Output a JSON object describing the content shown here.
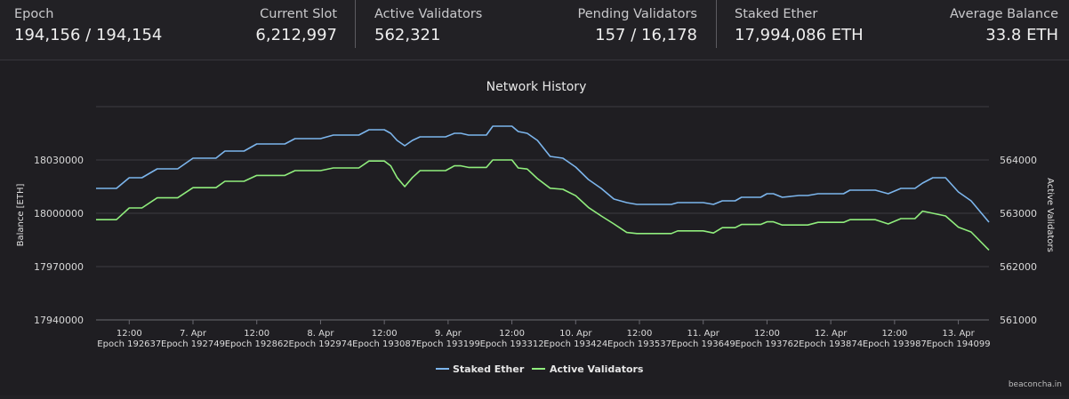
{
  "stats": [
    {
      "label": "Epoch",
      "value": "194,156 / 194,154"
    },
    {
      "label": "Current Slot",
      "value": "6,212,997"
    },
    {
      "label": "Active Validators",
      "value": "562,321"
    },
    {
      "label": "Pending Validators",
      "value": "157 / 16,178"
    },
    {
      "label": "Staked Ether",
      "value": "17,994,086 ETH"
    },
    {
      "label": "Average Balance",
      "value": "33.8 ETH"
    }
  ],
  "credit": "beaconcha.in",
  "chart_data": {
    "type": "line",
    "title": "Network History",
    "ylabel": "Balance [ETH]",
    "y2label": "Active Validators",
    "ylim": [
      17940000,
      18060000
    ],
    "y2lim": [
      561000,
      565000
    ],
    "yticks": [
      "17940000",
      "17970000",
      "18000000",
      "18030000"
    ],
    "y2ticks": [
      "561000",
      "562000",
      "563000",
      "564000"
    ],
    "x_ticks": [
      {
        "t": 0.5,
        "top": "12:00",
        "bottom": "Epoch 192637"
      },
      {
        "t": 1.0,
        "top": "7. Apr",
        "bottom": "Epoch 192749"
      },
      {
        "t": 1.5,
        "top": "12:00",
        "bottom": "Epoch 192862"
      },
      {
        "t": 2.0,
        "top": "8. Apr",
        "bottom": "Epoch 192974"
      },
      {
        "t": 2.5,
        "top": "12:00",
        "bottom": "Epoch 193087"
      },
      {
        "t": 3.0,
        "top": "9. Apr",
        "bottom": "Epoch 193199"
      },
      {
        "t": 3.5,
        "top": "12:00",
        "bottom": "Epoch 193312"
      },
      {
        "t": 4.0,
        "top": "10. Apr",
        "bottom": "Epoch 193424"
      },
      {
        "t": 4.5,
        "top": "12:00",
        "bottom": "Epoch 193537"
      },
      {
        "t": 5.0,
        "top": "11. Apr",
        "bottom": "Epoch 193649"
      },
      {
        "t": 5.5,
        "top": "12:00",
        "bottom": "Epoch 193762"
      },
      {
        "t": 6.0,
        "top": "12. Apr",
        "bottom": "Epoch 193874"
      },
      {
        "t": 6.5,
        "top": "12:00",
        "bottom": "Epoch 193987"
      },
      {
        "t": 7.0,
        "top": "13. Apr",
        "bottom": "Epoch 194099"
      }
    ],
    "xlim": [
      0.24,
      7.24
    ],
    "grid": true,
    "legend_position": "bottom-center",
    "series": [
      {
        "name": "Staked Ether",
        "axis": "left",
        "color": "#7cb5ec",
        "x": [
          0.24,
          0.4,
          0.5,
          0.6,
          0.72,
          0.8,
          0.88,
          1.0,
          1.1,
          1.18,
          1.25,
          1.32,
          1.4,
          1.5,
          1.6,
          1.72,
          1.8,
          1.88,
          2.0,
          2.1,
          2.2,
          2.3,
          2.38,
          2.45,
          2.5,
          2.55,
          2.6,
          2.66,
          2.72,
          2.78,
          2.9,
          2.98,
          3.05,
          3.1,
          3.16,
          3.22,
          3.3,
          3.35,
          3.4,
          3.5,
          3.55,
          3.62,
          3.7,
          3.8,
          3.9,
          4.0,
          4.1,
          4.2,
          4.3,
          4.4,
          4.48,
          4.55,
          4.65,
          4.75,
          4.8,
          4.9,
          5.0,
          5.08,
          5.15,
          5.25,
          5.3,
          5.35,
          5.45,
          5.5,
          5.55,
          5.62,
          5.75,
          5.82,
          5.9,
          6.0,
          6.1,
          6.15,
          6.25,
          6.3,
          6.35,
          6.45,
          6.55,
          6.6,
          6.66,
          6.72,
          6.8,
          6.9,
          7.0,
          7.1,
          7.24
        ],
        "y": [
          18014000,
          18014000,
          18020000,
          18020000,
          18025000,
          18025000,
          18025000,
          18031000,
          18031000,
          18031000,
          18035000,
          18035000,
          18035000,
          18039000,
          18039000,
          18039000,
          18042000,
          18042000,
          18042000,
          18044000,
          18044000,
          18044000,
          18047000,
          18047000,
          18047000,
          18045000,
          18041000,
          18038000,
          18041000,
          18043000,
          18043000,
          18043000,
          18045000,
          18045000,
          18044000,
          18044000,
          18044000,
          18049000,
          18049000,
          18049000,
          18046000,
          18045000,
          18041000,
          18032000,
          18031000,
          18026000,
          18019000,
          18014000,
          18008000,
          18006000,
          18005000,
          18005000,
          18005000,
          18005000,
          18006000,
          18006000,
          18006000,
          18005000,
          18007000,
          18007000,
          18009000,
          18009000,
          18009000,
          18011000,
          18011000,
          18009000,
          18010000,
          18010000,
          18011000,
          18011000,
          18011000,
          18013000,
          18013000,
          18013000,
          18013000,
          18011000,
          18014000,
          18014000,
          18014000,
          18017000,
          18020000,
          18020000,
          18012000,
          18007000,
          17995000
        ]
      },
      {
        "name": "Active Validators",
        "axis": "right",
        "color": "#90ed7d",
        "x": [
          0.24,
          0.4,
          0.5,
          0.6,
          0.72,
          0.8,
          0.88,
          1.0,
          1.1,
          1.18,
          1.25,
          1.32,
          1.4,
          1.5,
          1.6,
          1.72,
          1.8,
          1.88,
          2.0,
          2.1,
          2.2,
          2.3,
          2.38,
          2.45,
          2.5,
          2.55,
          2.6,
          2.66,
          2.72,
          2.78,
          2.9,
          2.98,
          3.05,
          3.1,
          3.16,
          3.22,
          3.3,
          3.35,
          3.4,
          3.5,
          3.55,
          3.62,
          3.7,
          3.8,
          3.9,
          4.0,
          4.1,
          4.2,
          4.3,
          4.4,
          4.48,
          4.55,
          4.65,
          4.75,
          4.8,
          4.9,
          5.0,
          5.08,
          5.15,
          5.25,
          5.3,
          5.35,
          5.45,
          5.5,
          5.55,
          5.62,
          5.75,
          5.82,
          5.9,
          6.0,
          6.1,
          6.15,
          6.25,
          6.3,
          6.35,
          6.45,
          6.55,
          6.6,
          6.66,
          6.72,
          6.8,
          6.9,
          7.0,
          7.1,
          7.24
        ],
        "y": [
          562880,
          562880,
          563100,
          563100,
          563290,
          563290,
          563290,
          563480,
          563480,
          563480,
          563600,
          563600,
          563600,
          563710,
          563710,
          563710,
          563800,
          563800,
          563800,
          563850,
          563850,
          563850,
          563980,
          563980,
          563980,
          563890,
          563670,
          563500,
          563670,
          563800,
          563800,
          563800,
          563890,
          563890,
          563860,
          563860,
          563860,
          564000,
          564000,
          564000,
          563850,
          563830,
          563650,
          563470,
          563450,
          563330,
          563110,
          562950,
          562800,
          562640,
          562620,
          562620,
          562620,
          562620,
          562670,
          562670,
          562670,
          562630,
          562730,
          562730,
          562790,
          562790,
          562790,
          562840,
          562840,
          562780,
          562780,
          562780,
          562830,
          562830,
          562830,
          562880,
          562880,
          562880,
          562880,
          562800,
          562900,
          562900,
          562900,
          563040,
          563000,
          562950,
          562740,
          562650,
          562310
        ]
      }
    ]
  }
}
